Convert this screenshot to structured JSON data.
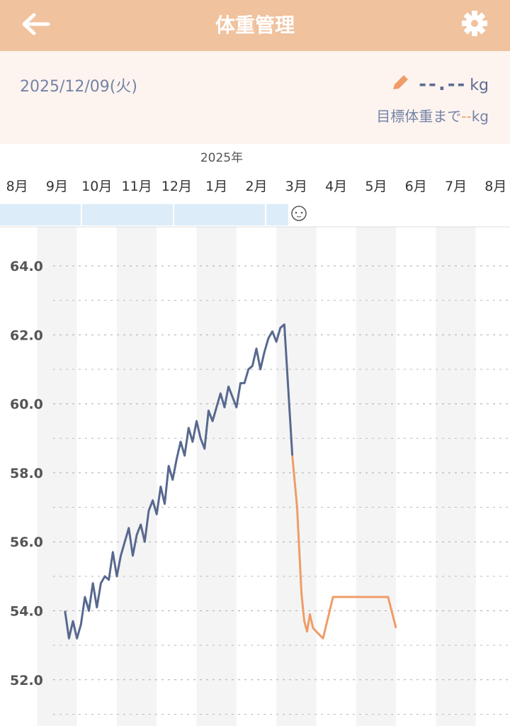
{
  "header": {
    "title": "体重管理"
  },
  "summary": {
    "date": "2025/12/09(火)",
    "weight": "--.--",
    "weight_unit": "kg",
    "goal_label": "目標体重まで",
    "goal_value": "--",
    "goal_unit": "kg"
  },
  "chart_data": {
    "type": "line",
    "year_label": "2025年",
    "categories": [
      "8月",
      "9月",
      "10月",
      "11月",
      "12月",
      "1月",
      "2月",
      "3月",
      "4月",
      "5月",
      "6月",
      "7月",
      "8月"
    ],
    "xlim": [
      0,
      13
    ],
    "ylim": [
      50.66,
      65.13
    ],
    "yticks": [
      {
        "value": 52,
        "label": "52.0"
      },
      {
        "value": 54,
        "label": "54.0"
      },
      {
        "value": 56,
        "label": "56.0"
      },
      {
        "value": 58,
        "label": "58.0"
      },
      {
        "value": 60,
        "label": "60.0"
      },
      {
        "value": 62,
        "label": "62.0"
      },
      {
        "value": 64,
        "label": "64.0"
      }
    ],
    "minor_yticks": [
      51,
      53,
      55,
      57,
      59,
      61,
      63
    ],
    "grid": true,
    "series": [
      {
        "color": "#58698f",
        "x": [
          1.7,
          1.8,
          1.9,
          2.0,
          2.1,
          2.2,
          2.3,
          2.4,
          2.5,
          2.6,
          2.7,
          2.8,
          2.9,
          3.0,
          3.1,
          3.2,
          3.3,
          3.4,
          3.5,
          3.6,
          3.7,
          3.8,
          3.9,
          4.0,
          4.1,
          4.2,
          4.3,
          4.4,
          4.5,
          4.6,
          4.7,
          4.8,
          4.9,
          5.0,
          5.1,
          5.2,
          5.3,
          5.4,
          5.5,
          5.6,
          5.7,
          5.8,
          5.9,
          6.0,
          6.1,
          6.2,
          6.3,
          6.4,
          6.5,
          6.6,
          6.7,
          6.8,
          6.9,
          7.0,
          7.1,
          7.2,
          7.4
        ],
        "values": [
          54.0,
          53.2,
          53.7,
          53.2,
          53.6,
          54.4,
          54.0,
          54.8,
          54.1,
          54.8,
          55.0,
          54.9,
          55.7,
          55.0,
          55.6,
          56.0,
          56.4,
          55.6,
          56.2,
          56.5,
          56.0,
          56.9,
          57.2,
          56.8,
          57.6,
          57.1,
          58.2,
          57.8,
          58.4,
          58.9,
          58.5,
          59.3,
          58.9,
          59.5,
          59.0,
          58.7,
          59.8,
          59.5,
          59.9,
          60.3,
          59.9,
          60.5,
          60.2,
          59.9,
          60.6,
          60.6,
          61.0,
          61.1,
          61.6,
          61.0,
          61.5,
          61.9,
          62.1,
          61.8,
          62.2,
          62.3,
          58.5
        ]
      },
      {
        "color": "#ef9c68",
        "x": [
          7.4,
          7.52,
          7.63,
          7.7,
          7.77,
          7.84,
          7.92,
          8.0,
          8.17,
          8.42,
          9.8,
          10.0
        ],
        "values": [
          58.5,
          57.0,
          54.5,
          53.7,
          53.4,
          53.9,
          53.5,
          53.4,
          53.2,
          54.4,
          54.4,
          53.5
        ]
      }
    ]
  }
}
